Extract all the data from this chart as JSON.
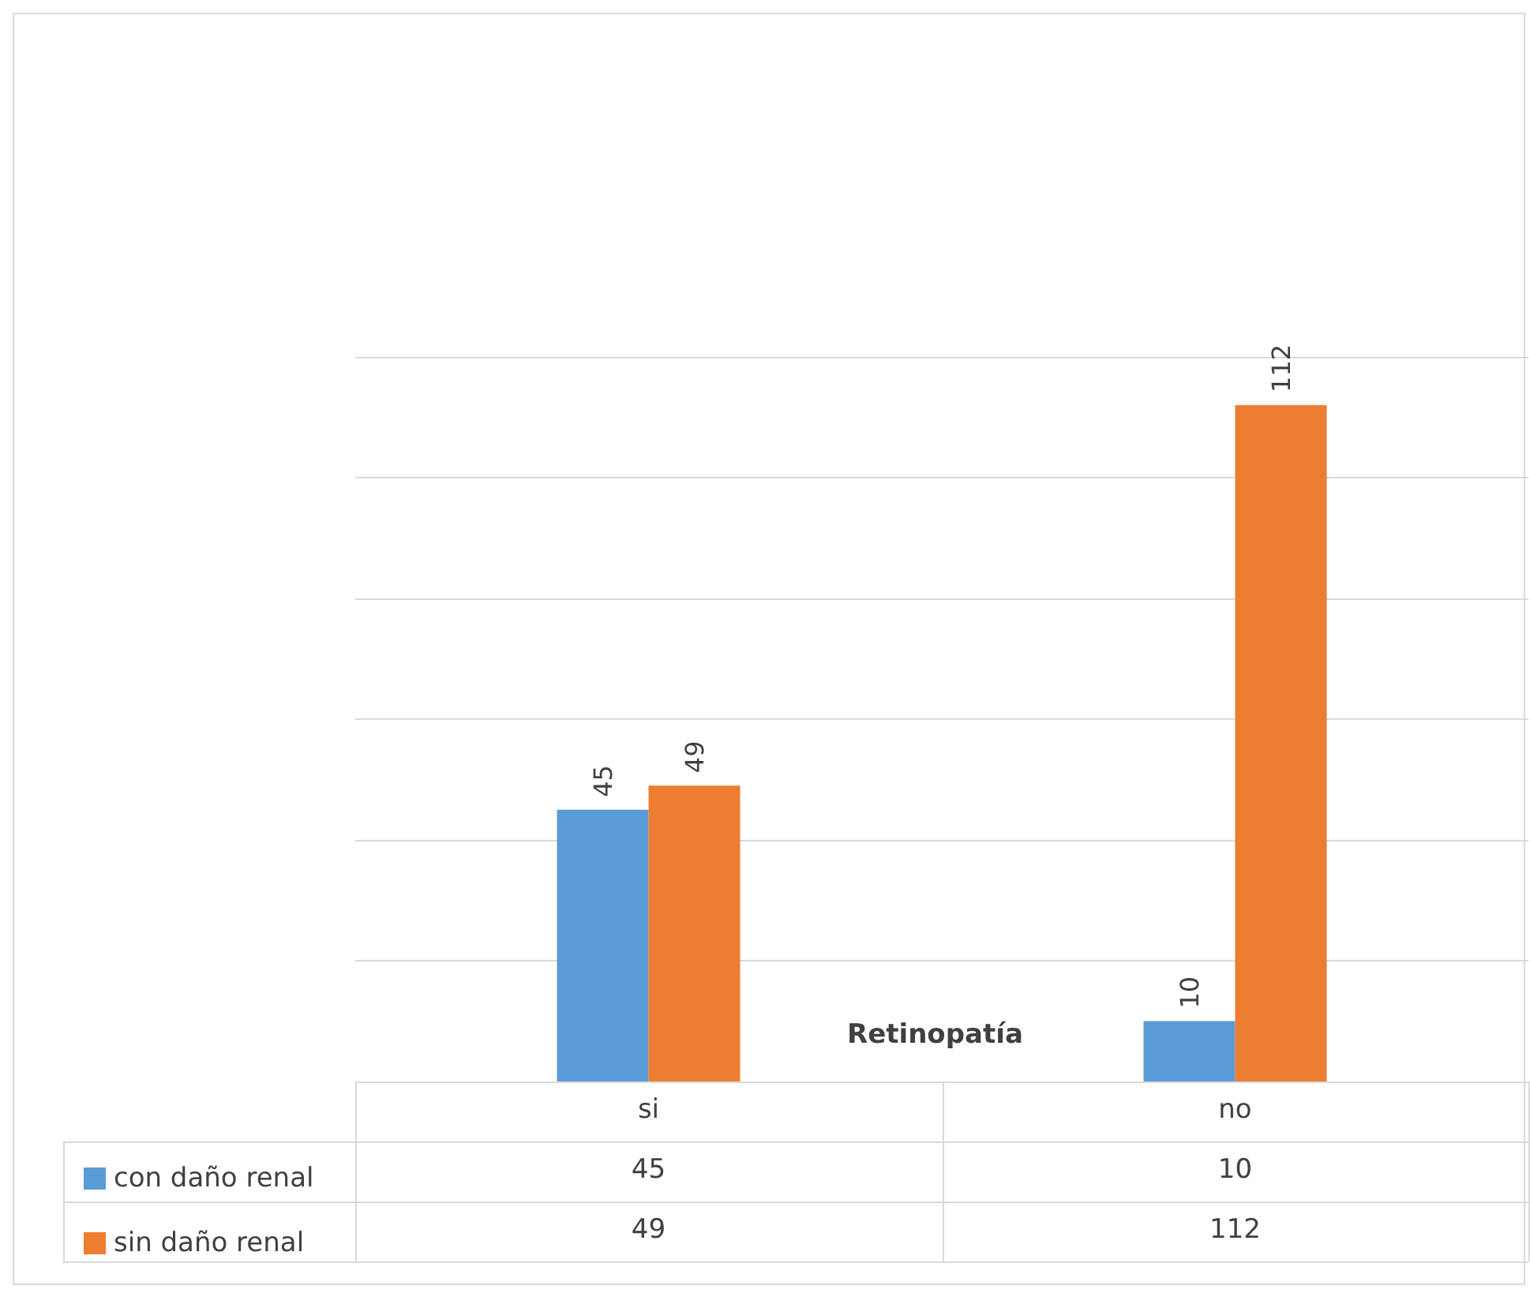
{
  "chart_data": {
    "type": "bar",
    "xlabel": "Retinopatía",
    "categories": [
      "si",
      "no"
    ],
    "series": [
      {
        "name": "con daño renal",
        "color": "#5b9bd5",
        "values": [
          45,
          10
        ],
        "value_labels": [
          "45",
          "10"
        ]
      },
      {
        "name": "sin daño renal",
        "color": "#ed7d31",
        "values": [
          49,
          112
        ],
        "value_labels": [
          "49",
          "112"
        ]
      }
    ],
    "ylim": [
      0,
      120
    ],
    "yticks": [
      0,
      20,
      40,
      60,
      80,
      100,
      120
    ],
    "tick_labels": "x",
    "annotations": [
      "45",
      "10",
      "49",
      "112"
    ],
    "grid": "y",
    "legend": "bottom left",
    "data_labels": true
  }
}
